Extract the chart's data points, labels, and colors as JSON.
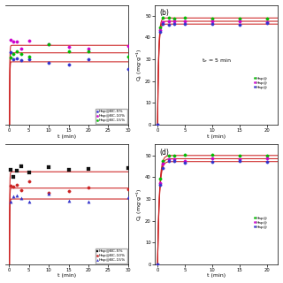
{
  "panels": [
    {
      "label": "",
      "markers": [
        "o",
        "o",
        "o"
      ],
      "marker_colors": [
        "#3333cc",
        "#cc00cc",
        "#00bb00"
      ],
      "line_colors": [
        "#cc2222",
        "#cc2222",
        "#cc2222"
      ],
      "series_labels": [
        "Hap@BC-5%",
        "Hap@BC-10%",
        "Hap@BC-15%"
      ],
      "ylim": [
        43,
        51
      ],
      "xlim": [
        -1,
        30
      ],
      "yticks": [],
      "xticks": [
        0,
        5,
        10,
        15,
        20,
        25,
        30
      ],
      "ylabel": "",
      "has_annotation": false,
      "legend_loc": "lower right",
      "qe_vals": [
        47.2,
        48.3,
        47.8
      ],
      "k": 15.0,
      "t_data": [
        0.5,
        1,
        2,
        3,
        5,
        10,
        15,
        20,
        30
      ],
      "start_zero": false
    },
    {
      "label": "(b)",
      "markers": [
        "o",
        "o",
        "o"
      ],
      "marker_colors": [
        "#00bb00",
        "#cc00cc",
        "#3333cc"
      ],
      "line_colors": [
        "#cc2222",
        "#cc2222",
        "#cc2222"
      ],
      "series_labels": [
        "Hap@",
        "Hap@",
        "Hap@"
      ],
      "ylim": [
        0,
        55
      ],
      "xlim": [
        -0.5,
        22
      ],
      "yticks": [
        0,
        10,
        20,
        30,
        40,
        50
      ],
      "xticks": [
        0,
        5,
        10,
        15,
        20
      ],
      "ylabel": "Q$_t$ (mg$\\cdot$g$^{-1}$)",
      "has_annotation": true,
      "annotation": "t$_e$ = 5 min",
      "legend_loc": "right_edge",
      "qe_vals": [
        49.0,
        47.5,
        46.2
      ],
      "k": 5.0,
      "t_data": [
        0,
        0.5,
        1,
        2,
        3,
        5,
        10,
        15,
        20
      ],
      "start_zero": true
    },
    {
      "label": "",
      "markers": [
        "s",
        "o",
        "^"
      ],
      "marker_colors": [
        "#111111",
        "#cc2222",
        "#3333cc"
      ],
      "line_colors": [
        "#cc2222",
        "#cc2222",
        "#cc2222"
      ],
      "series_labels": [
        "Hap@BC-5%",
        "Hap@BC-10%",
        "Hap@BC-15%"
      ],
      "ylim": [
        43,
        54
      ],
      "xlim": [
        -1,
        30
      ],
      "yticks": [],
      "xticks": [
        0,
        5,
        10,
        15,
        20,
        25,
        30
      ],
      "ylabel": "",
      "has_annotation": false,
      "legend_loc": "lower right",
      "qe_vals": [
        51.5,
        50.0,
        49.0
      ],
      "k": 15.0,
      "t_data": [
        0.5,
        1,
        2,
        3,
        5,
        10,
        15,
        20,
        30
      ],
      "start_zero": false
    },
    {
      "label": "(d)",
      "markers": [
        "o",
        "o",
        "o"
      ],
      "marker_colors": [
        "#00bb00",
        "#cc00cc",
        "#3333cc"
      ],
      "line_colors": [
        "#cc2222",
        "#cc2222",
        "#cc2222"
      ],
      "series_labels": [
        "Hap@",
        "Hap@",
        "Hap@"
      ],
      "ylim": [
        0,
        55
      ],
      "xlim": [
        -0.5,
        22
      ],
      "yticks": [
        0,
        10,
        20,
        30,
        40,
        50
      ],
      "xticks": [
        0,
        5,
        10,
        15,
        20
      ],
      "ylabel": "Q$_t$ (mg$\\cdot$g$^{-1}$)",
      "has_annotation": false,
      "legend_loc": "right_edge",
      "qe_vals": [
        50.0,
        48.5,
        47.2
      ],
      "k": 3.0,
      "t_data": [
        0,
        0.5,
        1,
        2,
        3,
        5,
        10,
        15,
        20
      ],
      "start_zero": true
    }
  ]
}
